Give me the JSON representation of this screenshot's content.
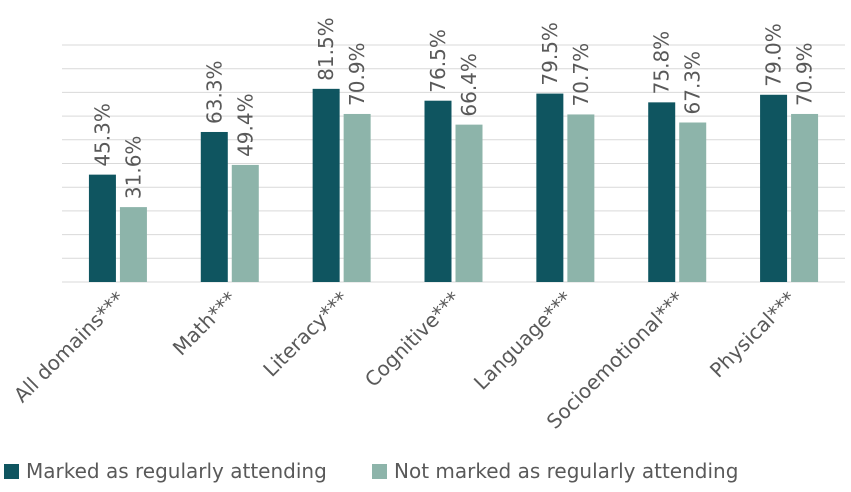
{
  "chart_data": {
    "type": "bar",
    "categories": [
      "All domains***",
      "Math***",
      "Literacy***",
      "Cognitive***",
      "Language***",
      "Socioemotional***",
      "Physical***"
    ],
    "series": [
      {
        "name": "Marked as regularly attending",
        "values": [
          45.3,
          63.3,
          81.5,
          76.5,
          79.5,
          75.8,
          79.0
        ],
        "labels": [
          "45.3%",
          "63.3%",
          "81.5%",
          "76.5%",
          "79.5%",
          "75.8%",
          "79.0%"
        ],
        "color": "#0f5560"
      },
      {
        "name": "Not marked as regularly attending",
        "values": [
          31.6,
          49.4,
          70.9,
          66.4,
          70.7,
          67.3,
          70.9
        ],
        "labels": [
          "31.6%",
          "49.4%",
          "70.9%",
          "66.4%",
          "70.7%",
          "67.3%",
          "70.9%"
        ],
        "color": "#8db4aa"
      }
    ],
    "ylim": [
      0,
      100
    ],
    "grid": true,
    "legend_position": "bottom"
  }
}
